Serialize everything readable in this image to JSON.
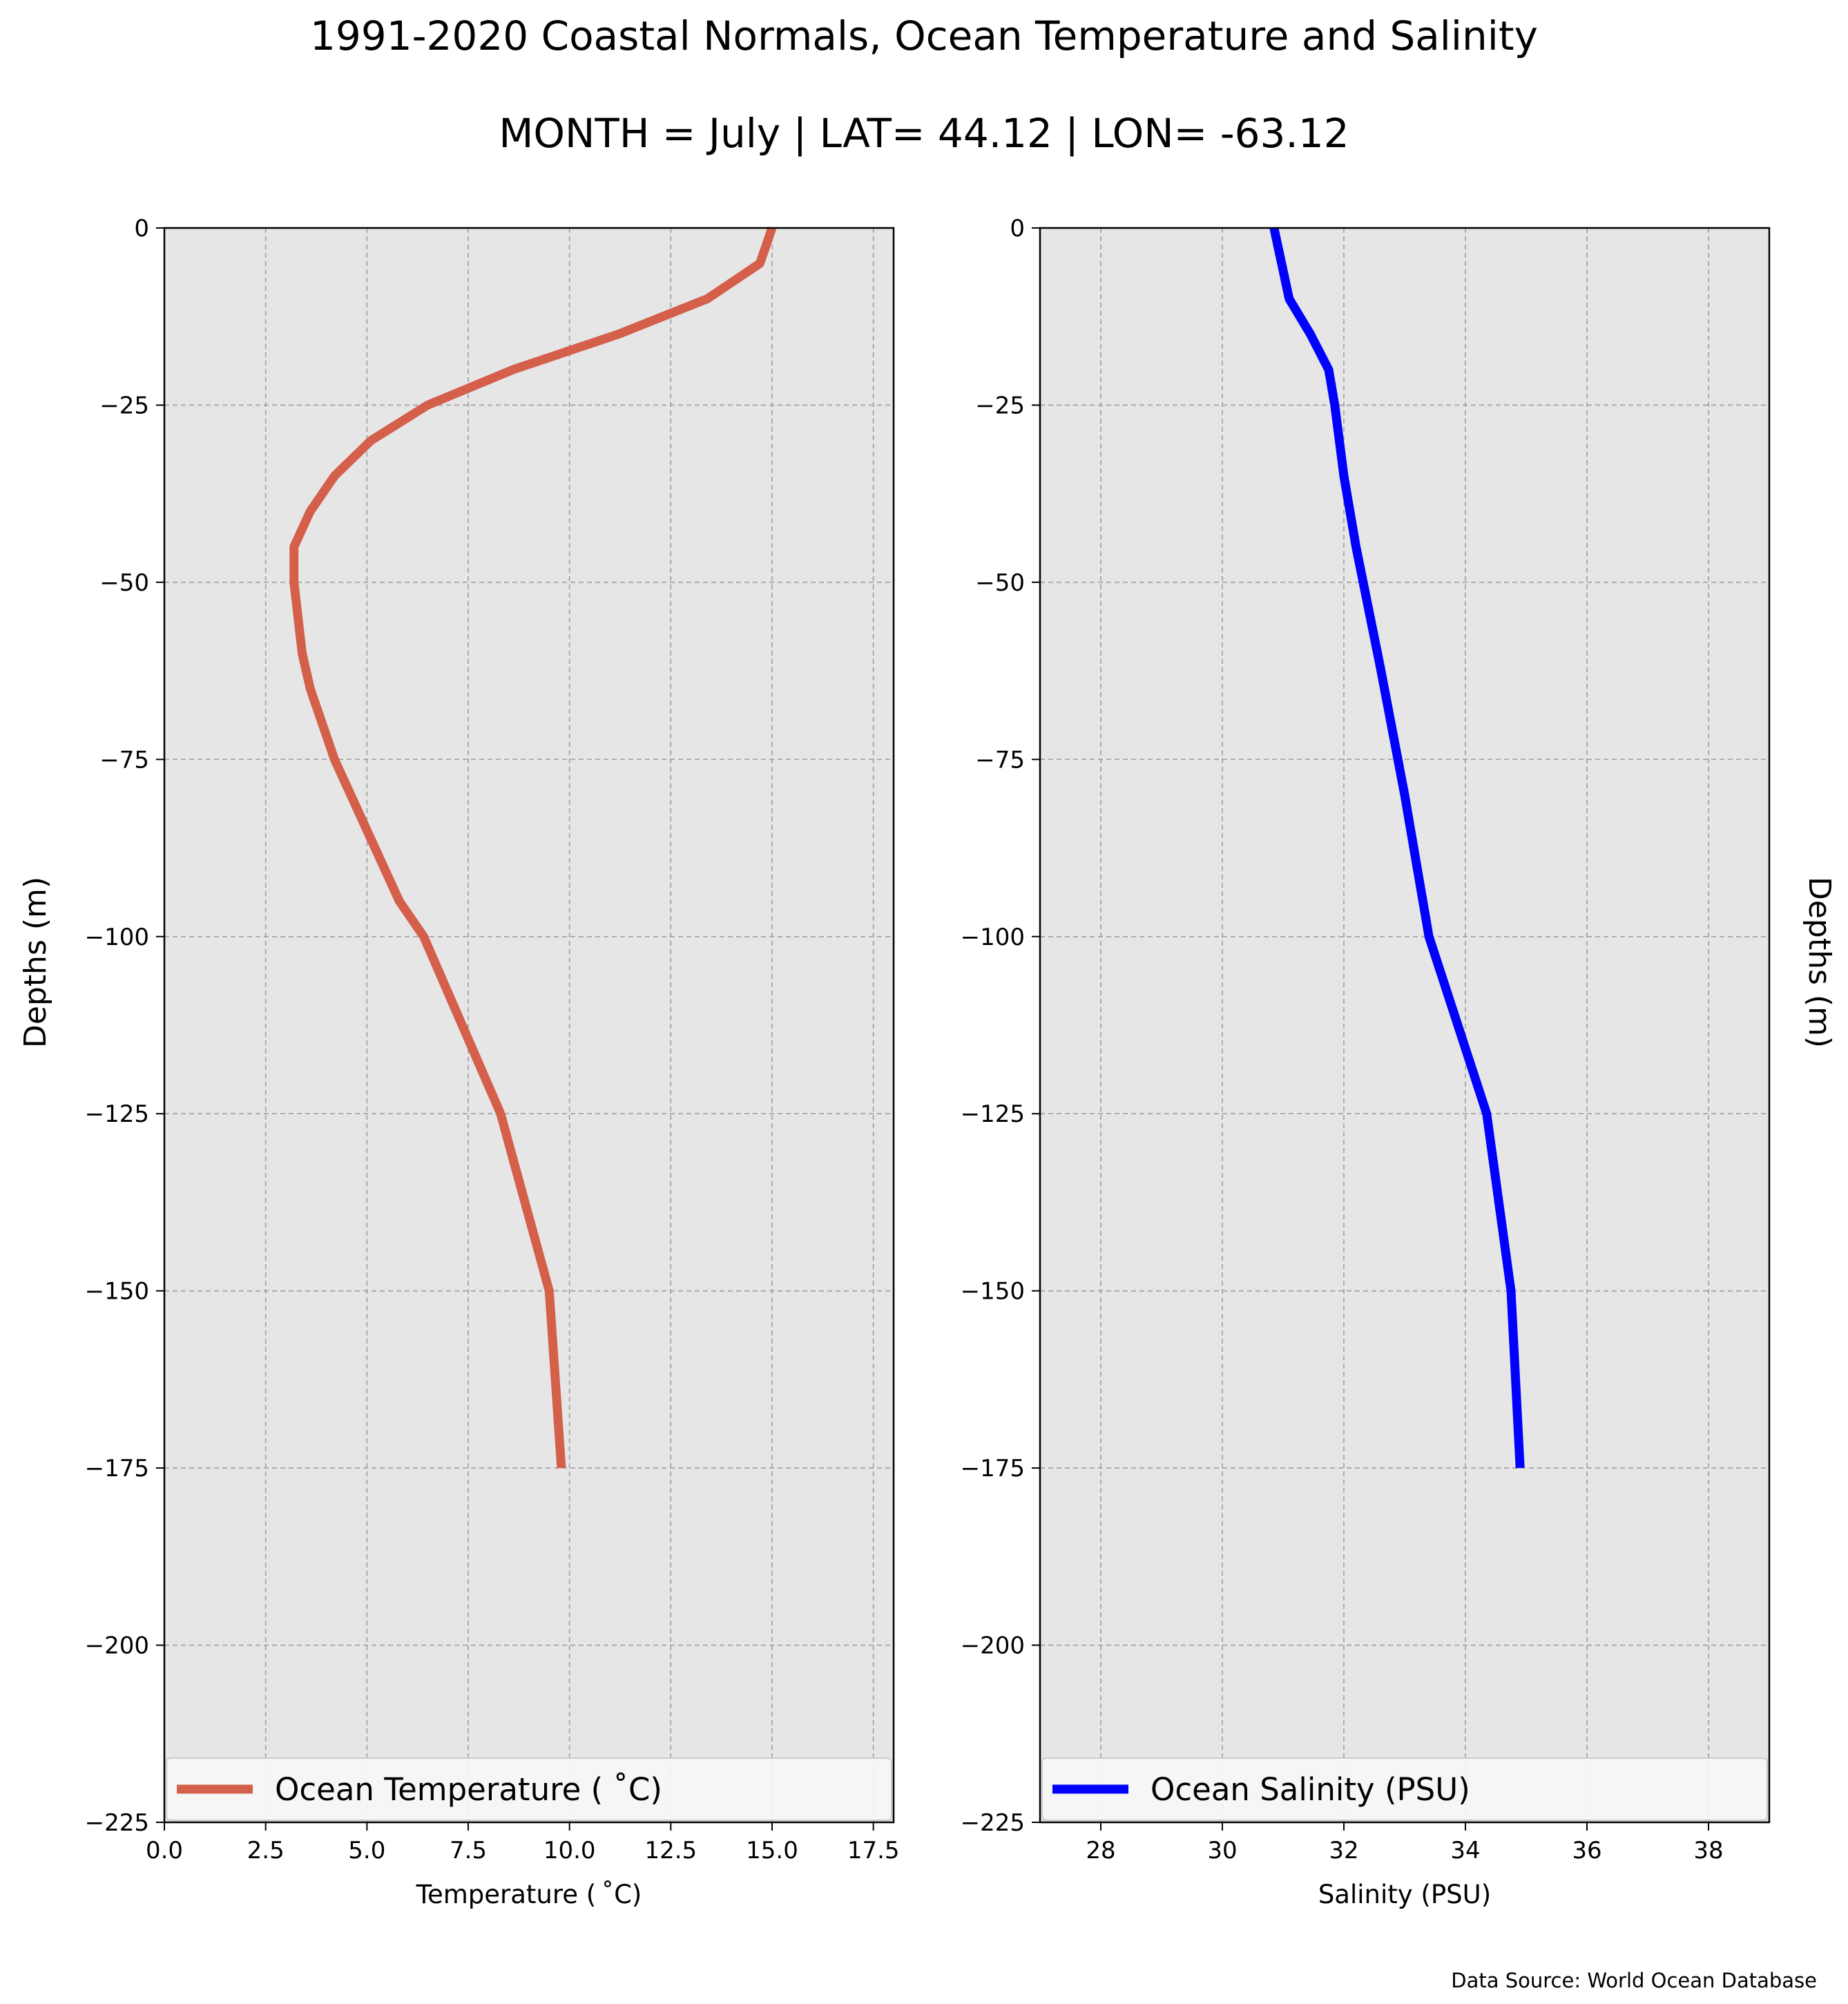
{
  "title": "1991-2020 Coastal Normals, Ocean Temperature and Salinity",
  "subtitle": "MONTH = July | LAT= 44.12 | LON= -63.12",
  "source": "Data Source: World Ocean Database",
  "chart_data": [
    {
      "type": "line",
      "xlabel": "Temperature ($^\\circ$C)",
      "xlabel_display": "Temperature ( ˚C)",
      "ylabel": "Depths (m)",
      "xlim": [
        0,
        18
      ],
      "ylim": [
        -225,
        0
      ],
      "xticks": [
        0,
        2.5,
        5,
        7.5,
        10,
        12.5,
        15,
        17.5
      ],
      "xtick_labels": [
        "0.0",
        "2.5",
        "5.0",
        "7.5",
        "10.0",
        "12.5",
        "15.0",
        "17.5"
      ],
      "yticks": [
        0,
        -25,
        -50,
        -75,
        -100,
        -125,
        -150,
        -175,
        -200,
        -225
      ],
      "ytick_labels": [
        "0",
        "−25",
        "−50",
        "−75",
        "−100",
        "−125",
        "−150",
        "−175",
        "−200",
        "−225"
      ],
      "grid": true,
      "legend_placement": "bottom",
      "series": [
        {
          "name": "Ocean Temperature ( ˚C)",
          "color": "#d45f4a",
          "x": [
            15.0,
            14.7,
            13.4,
            11.2,
            8.6,
            6.5,
            5.1,
            4.2,
            3.6,
            3.2,
            3.2,
            3.3,
            3.4,
            3.6,
            4.2,
            5.0,
            5.8,
            6.4,
            8.3,
            9.5,
            9.8
          ],
          "y": [
            0,
            -5,
            -10,
            -15,
            -20,
            -25,
            -30,
            -35,
            -40,
            -45,
            -50,
            -55,
            -60,
            -65,
            -75,
            -85,
            -95,
            -100,
            -125,
            -150,
            -175
          ]
        }
      ]
    },
    {
      "type": "line",
      "xlabel": "Salinity (PSU)",
      "ylabel": "Depths (m)",
      "xlim": [
        27,
        39
      ],
      "ylim": [
        -225,
        0
      ],
      "xticks": [
        28,
        30,
        32,
        34,
        36,
        38
      ],
      "xtick_labels": [
        "28",
        "30",
        "32",
        "34",
        "36",
        "38"
      ],
      "yticks": [
        0,
        -25,
        -50,
        -75,
        -100,
        -125,
        -150,
        -175,
        -200,
        -225
      ],
      "ytick_labels": [
        "0",
        "−25",
        "−50",
        "−75",
        "−100",
        "−125",
        "−150",
        "−175",
        "−200",
        "−225"
      ],
      "grid": true,
      "legend_placement": "bottom",
      "series": [
        {
          "name": "Ocean Salinity (PSU)",
          "color": "#0000ff",
          "x": [
            30.85,
            31.1,
            31.45,
            31.75,
            31.85,
            32.0,
            32.2,
            32.6,
            33.0,
            33.4,
            34.35,
            34.75,
            34.9
          ],
          "y": [
            0,
            -10,
            -15,
            -20,
            -25,
            -35,
            -45,
            -62,
            -80,
            -100,
            -125,
            -150,
            -175
          ]
        }
      ]
    }
  ]
}
